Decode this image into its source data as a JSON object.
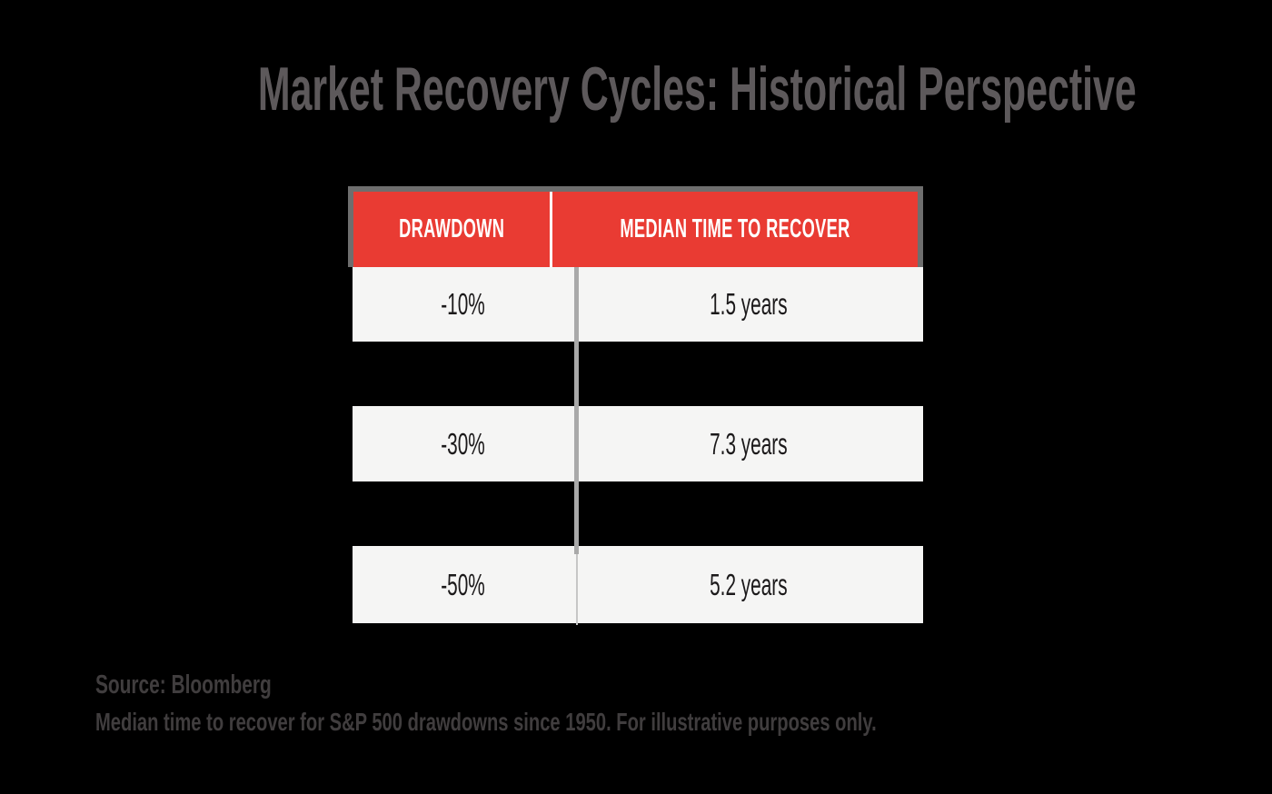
{
  "title": "Market Recovery Cycles: Historical Perspective",
  "table": {
    "columns": [
      "DRAWDOWN",
      "MEDIAN TIME TO RECOVER"
    ],
    "rows": [
      {
        "drawdown": "-10%",
        "recovery": "1.5 years"
      },
      {
        "drawdown": "-30%",
        "recovery": "7.3 years"
      },
      {
        "drawdown": "-50%",
        "recovery": "5.2 years"
      }
    ]
  },
  "footer": {
    "line1": "Source: Bloomberg",
    "line2": "Median time to recover for S&P 500 drawdowns since 1950. For illustrative purposes only."
  },
  "colors": {
    "background": "#000000",
    "title_text": "#5d595b",
    "header_red": "#e93b33",
    "header_text": "#ffffff",
    "table_border": "#6e6e6e",
    "row_bg": "#f5f5f4",
    "cell_text": "#1b191a",
    "divider_gray": "#a9a9a9",
    "divider_light": "#c6c6c6",
    "footer_text": "#403d3e"
  },
  "chart_data": {
    "type": "table",
    "title": "Market Recovery Cycles: Historical Perspective",
    "columns": [
      "Drawdown",
      "Median Time to Recover"
    ],
    "rows": [
      [
        "-10%",
        "1.5 years"
      ],
      [
        "-30%",
        "7.3 years"
      ],
      [
        "-50%",
        "5.2 years"
      ]
    ],
    "drawdown_pct": [
      -10,
      -30,
      -50
    ],
    "recovery_years": [
      1.5,
      7.3,
      5.2
    ],
    "legend_position": "none",
    "grid": false
  }
}
